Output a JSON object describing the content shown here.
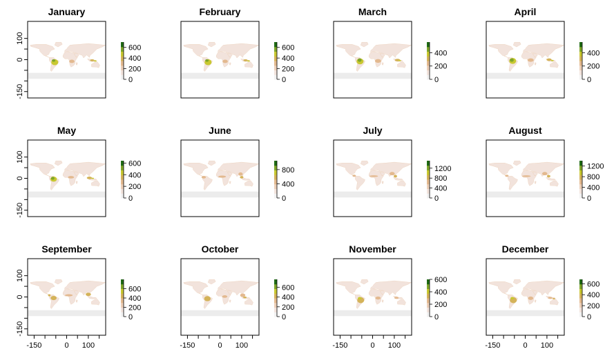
{
  "chart_data": [
    {
      "type": "heatmap",
      "title": "January",
      "legend_max": 700,
      "legend_ticks": [
        0,
        200,
        400,
        600
      ]
    },
    {
      "type": "heatmap",
      "title": "February",
      "legend_max": 700,
      "legend_ticks": [
        0,
        200,
        400,
        600
      ]
    },
    {
      "type": "heatmap",
      "title": "March",
      "legend_max": 560,
      "legend_ticks": [
        0,
        200,
        400
      ]
    },
    {
      "type": "heatmap",
      "title": "April",
      "legend_max": 560,
      "legend_ticks": [
        0,
        200,
        400
      ]
    },
    {
      "type": "heatmap",
      "title": "May",
      "legend_max": 640,
      "legend_ticks": [
        0,
        200,
        400,
        600
      ]
    },
    {
      "type": "heatmap",
      "title": "June",
      "legend_max": 1050,
      "legend_ticks": [
        0,
        400,
        800
      ]
    },
    {
      "type": "heatmap",
      "title": "July",
      "legend_max": 1500,
      "legend_ticks": [
        0,
        400,
        800,
        1200
      ]
    },
    {
      "type": "heatmap",
      "title": "August",
      "legend_max": 1400,
      "legend_ticks": [
        0,
        400,
        800,
        1200
      ]
    },
    {
      "type": "heatmap",
      "title": "September",
      "legend_max": 800,
      "legend_ticks": [
        0,
        200,
        400,
        600
      ]
    },
    {
      "type": "heatmap",
      "title": "October",
      "legend_max": 760,
      "legend_ticks": [
        0,
        200,
        400,
        600
      ]
    },
    {
      "type": "heatmap",
      "title": "November",
      "legend_max": 600,
      "legend_ticks": [
        0,
        200,
        400,
        600
      ]
    },
    {
      "type": "heatmap",
      "title": "December",
      "legend_max": 680,
      "legend_ticks": [
        0,
        200,
        400,
        600
      ]
    }
  ],
  "x_axis": {
    "range": [
      -180,
      180
    ],
    "ticks": [
      -150,
      -100,
      -50,
      0,
      50,
      100,
      150
    ],
    "labeled_ticks": [
      -150,
      0,
      100
    ]
  },
  "y_axis": {
    "range": [
      -180,
      180
    ],
    "ticks": [
      -150,
      -100,
      -50,
      0,
      50,
      100
    ],
    "labeled_ticks": [
      -150,
      0,
      100
    ]
  },
  "colors": {
    "ramp": [
      "#f2f2f2",
      "#f2e3dc",
      "#eccfb8",
      "#e3b98f",
      "#d4b359",
      "#c8c830",
      "#7ea52a",
      "#1f6a14"
    ],
    "ocean": "#ffffff",
    "antarctica": "#ececec"
  }
}
